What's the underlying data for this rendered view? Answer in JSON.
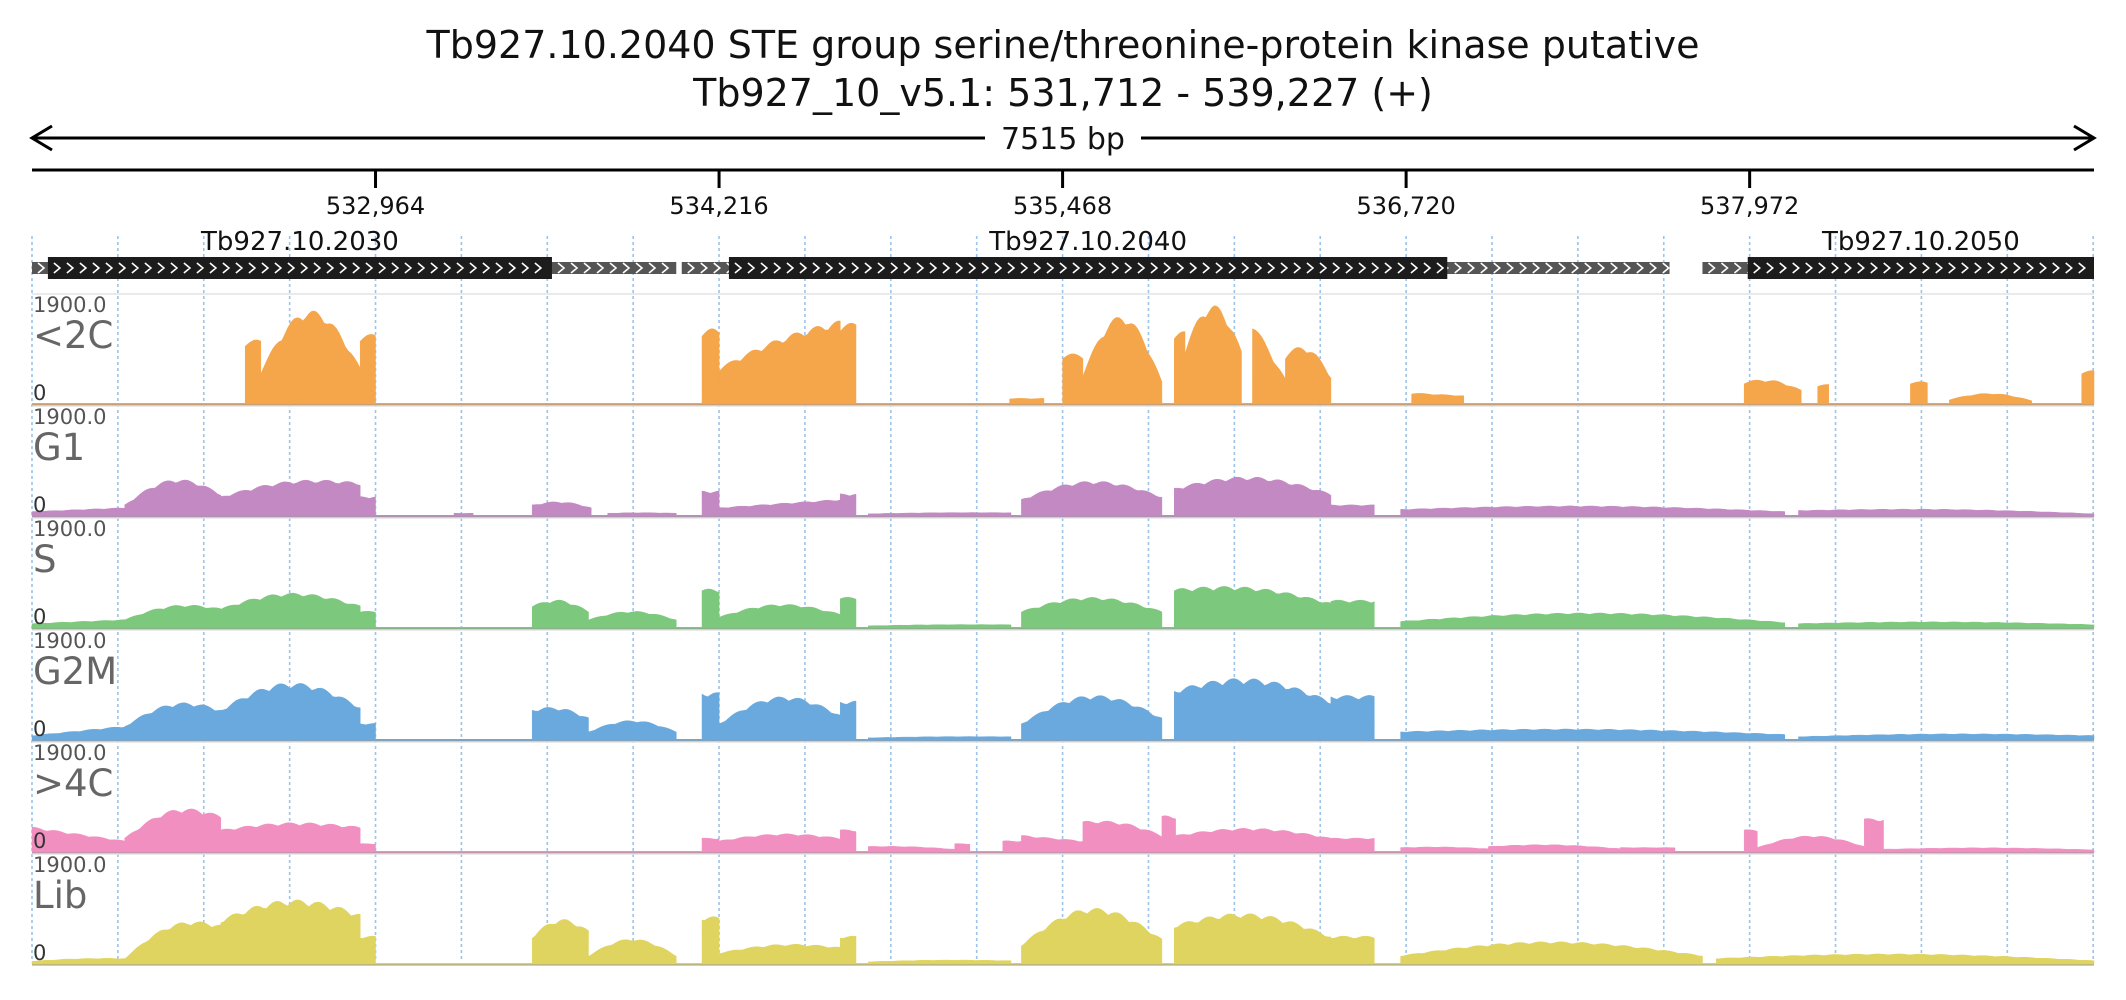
{
  "chart_data": {
    "type": "area",
    "title": "Tb927.10.2040  STE group serine/threonine-protein kinase  putative",
    "subtitle": "Tb927_10_v5.1: 531,712 - 539,227 (+)",
    "span_label": "7515 bp",
    "x_range": [
      531712,
      539227
    ],
    "x_ticks": [
      {
        "value": 532964,
        "label": "532,964"
      },
      {
        "value": 534216,
        "label": "534,216"
      },
      {
        "value": 535468,
        "label": "535,468"
      },
      {
        "value": 536720,
        "label": "536,720"
      },
      {
        "value": 537972,
        "label": "537,972"
      }
    ],
    "grid": true,
    "genes": [
      {
        "name": "Tb927.10.2030",
        "utr_start": 531712,
        "cds_start": 531770,
        "cds_end": 533607,
        "utr_end": 534060,
        "strand": "+"
      },
      {
        "name": "Tb927.10.2040",
        "utr_start": 534080,
        "cds_start": 534252,
        "cds_end": 536870,
        "utr_end": 537680,
        "strand": "+"
      },
      {
        "name": "Tb927.10.2050",
        "utr_start": 537800,
        "cds_start": 537965,
        "cds_end": 539227,
        "utr_end": 539227,
        "strand": "+"
      }
    ],
    "y_max_label": "1900.0",
    "y_min_label": "0",
    "ylim": [
      0,
      1900
    ],
    "series": [
      {
        "name": "<2C",
        "color": "#f5a54a",
        "segments": [
          {
            "start": 532489,
            "end": 532546,
            "v0": 1150,
            "v1": 1150,
            "peak": 1150
          },
          {
            "start": 532546,
            "end": 532908,
            "v0": 600,
            "v1": 650,
            "peak": 1700
          },
          {
            "start": 532908,
            "end": 532964,
            "v0": 1250,
            "v1": 1250,
            "peak": 1250
          },
          {
            "start": 534154,
            "end": 534216,
            "v0": 1350,
            "v1": 1350,
            "peak": 1350
          },
          {
            "start": 534216,
            "end": 534658,
            "v0": 650,
            "v1": 1500,
            "peak": 1600
          },
          {
            "start": 534658,
            "end": 534715,
            "v0": 1450,
            "v1": 1450,
            "peak": 1450
          },
          {
            "start": 535275,
            "end": 535400,
            "v0": 100,
            "v1": 100,
            "peak": 100
          },
          {
            "start": 535468,
            "end": 535542,
            "v0": 900,
            "v1": 900,
            "peak": 900
          },
          {
            "start": 535542,
            "end": 535830,
            "v0": 550,
            "v1": 400,
            "peak": 1650
          },
          {
            "start": 535875,
            "end": 535914,
            "v0": 1300,
            "v1": 1300,
            "peak": 1300
          },
          {
            "start": 535914,
            "end": 536120,
            "v0": 1000,
            "v1": 950,
            "peak": 1800
          },
          {
            "start": 536160,
            "end": 536280,
            "v0": 1500,
            "v1": 450,
            "peak": 1500
          },
          {
            "start": 536280,
            "end": 536446,
            "v0": 900,
            "v1": 500,
            "peak": 1200
          },
          {
            "start": 536740,
            "end": 536930,
            "v0": 200,
            "v1": 150,
            "peak": 200
          },
          {
            "start": 537952,
            "end": 538160,
            "v0": 400,
            "v1": 250,
            "peak": 500
          },
          {
            "start": 538220,
            "end": 538260,
            "v0": 350,
            "v1": 350,
            "peak": 350
          },
          {
            "start": 538558,
            "end": 538620,
            "v0": 400,
            "v1": 400,
            "peak": 400
          },
          {
            "start": 538700,
            "end": 539000,
            "v0": 80,
            "v1": 60,
            "peak": 200
          },
          {
            "start": 539182,
            "end": 539227,
            "v0": 600,
            "v1": 600,
            "peak": 600
          }
        ]
      },
      {
        "name": "G1",
        "color": "#c389c3",
        "segments": [
          {
            "start": 531712,
            "end": 532050,
            "v0": 80,
            "v1": 150,
            "peak": 150
          },
          {
            "start": 532050,
            "end": 532400,
            "v0": 200,
            "v1": 400,
            "peak": 750
          },
          {
            "start": 532400,
            "end": 532908,
            "v0": 350,
            "v1": 600,
            "peak": 750
          },
          {
            "start": 532908,
            "end": 532964,
            "v0": 350,
            "v1": 350,
            "peak": 350
          },
          {
            "start": 533250,
            "end": 533320,
            "v0": 50,
            "v1": 50,
            "peak": 50
          },
          {
            "start": 533535,
            "end": 533750,
            "v0": 200,
            "v1": 150,
            "peak": 280
          },
          {
            "start": 533810,
            "end": 534060,
            "v0": 50,
            "v1": 50,
            "peak": 60
          },
          {
            "start": 534154,
            "end": 534216,
            "v0": 450,
            "v1": 450,
            "peak": 450
          },
          {
            "start": 534216,
            "end": 534658,
            "v0": 150,
            "v1": 300,
            "peak": 300
          },
          {
            "start": 534658,
            "end": 534715,
            "v0": 400,
            "v1": 400,
            "peak": 400
          },
          {
            "start": 534760,
            "end": 535280,
            "v0": 40,
            "v1": 60,
            "peak": 70
          },
          {
            "start": 535318,
            "end": 535830,
            "v0": 300,
            "v1": 350,
            "peak": 650
          },
          {
            "start": 535875,
            "end": 536446,
            "v0": 500,
            "v1": 400,
            "peak": 750
          },
          {
            "start": 536446,
            "end": 536604,
            "v0": 200,
            "v1": 200,
            "peak": 200
          },
          {
            "start": 536700,
            "end": 538100,
            "v0": 120,
            "v1": 80,
            "peak": 200
          },
          {
            "start": 538150,
            "end": 539227,
            "v0": 100,
            "v1": 40,
            "peak": 150
          }
        ]
      },
      {
        "name": "S",
        "color": "#7cc87c",
        "segments": [
          {
            "start": 531712,
            "end": 532050,
            "v0": 80,
            "v1": 150,
            "peak": 150
          },
          {
            "start": 532050,
            "end": 532400,
            "v0": 150,
            "v1": 350,
            "peak": 500
          },
          {
            "start": 532400,
            "end": 532908,
            "v0": 350,
            "v1": 400,
            "peak": 650
          },
          {
            "start": 532908,
            "end": 532964,
            "v0": 300,
            "v1": 300,
            "peak": 300
          },
          {
            "start": 533535,
            "end": 533740,
            "v0": 400,
            "v1": 300,
            "peak": 550
          },
          {
            "start": 533740,
            "end": 534060,
            "v0": 150,
            "v1": 150,
            "peak": 300
          },
          {
            "start": 534154,
            "end": 534216,
            "v0": 700,
            "v1": 700,
            "peak": 700
          },
          {
            "start": 534216,
            "end": 534658,
            "v0": 200,
            "v1": 250,
            "peak": 450
          },
          {
            "start": 534658,
            "end": 534715,
            "v0": 550,
            "v1": 550,
            "peak": 550
          },
          {
            "start": 534760,
            "end": 535280,
            "v0": 40,
            "v1": 60,
            "peak": 70
          },
          {
            "start": 535318,
            "end": 535830,
            "v0": 300,
            "v1": 300,
            "peak": 550
          },
          {
            "start": 535875,
            "end": 536446,
            "v0": 700,
            "v1": 450,
            "peak": 850
          },
          {
            "start": 536446,
            "end": 536604,
            "v0": 500,
            "v1": 500,
            "peak": 500
          },
          {
            "start": 536700,
            "end": 538100,
            "v0": 120,
            "v1": 100,
            "peak": 280
          },
          {
            "start": 538150,
            "end": 539227,
            "v0": 80,
            "v1": 60,
            "peak": 120
          }
        ]
      },
      {
        "name": "G2M",
        "color": "#6aa9dd",
        "segments": [
          {
            "start": 531712,
            "end": 532050,
            "v0": 80,
            "v1": 250,
            "peak": 250
          },
          {
            "start": 532050,
            "end": 532400,
            "v0": 250,
            "v1": 550,
            "peak": 800
          },
          {
            "start": 532400,
            "end": 532908,
            "v0": 550,
            "v1": 600,
            "peak": 1050
          },
          {
            "start": 532908,
            "end": 532964,
            "v0": 300,
            "v1": 300,
            "peak": 300
          },
          {
            "start": 533535,
            "end": 533740,
            "v0": 550,
            "v1": 400,
            "peak": 650
          },
          {
            "start": 533740,
            "end": 534060,
            "v0": 150,
            "v1": 150,
            "peak": 350
          },
          {
            "start": 534154,
            "end": 534216,
            "v0": 850,
            "v1": 850,
            "peak": 850
          },
          {
            "start": 534216,
            "end": 534658,
            "v0": 300,
            "v1": 450,
            "peak": 850
          },
          {
            "start": 534658,
            "end": 534715,
            "v0": 700,
            "v1": 700,
            "peak": 700
          },
          {
            "start": 534760,
            "end": 535280,
            "v0": 40,
            "v1": 60,
            "peak": 70
          },
          {
            "start": 535318,
            "end": 535830,
            "v0": 300,
            "v1": 400,
            "peak": 850
          },
          {
            "start": 535875,
            "end": 536446,
            "v0": 900,
            "v1": 700,
            "peak": 1200
          },
          {
            "start": 536446,
            "end": 536604,
            "v0": 800,
            "v1": 800,
            "peak": 800
          },
          {
            "start": 536700,
            "end": 538100,
            "v0": 150,
            "v1": 100,
            "peak": 220
          },
          {
            "start": 538150,
            "end": 539227,
            "v0": 60,
            "v1": 80,
            "peak": 120
          }
        ]
      },
      {
        "name": ">4C",
        "color": "#f190c0",
        "segments": [
          {
            "start": 531712,
            "end": 532050,
            "v0": 450,
            "v1": 200,
            "peak": 450
          },
          {
            "start": 532050,
            "end": 532400,
            "v0": 250,
            "v1": 650,
            "peak": 950
          },
          {
            "start": 532400,
            "end": 532908,
            "v0": 400,
            "v1": 450,
            "peak": 550
          },
          {
            "start": 532908,
            "end": 532964,
            "v0": 150,
            "v1": 150,
            "peak": 150
          },
          {
            "start": 534154,
            "end": 534216,
            "v0": 250,
            "v1": 250,
            "peak": 250
          },
          {
            "start": 534216,
            "end": 534658,
            "v0": 200,
            "v1": 250,
            "peak": 350
          },
          {
            "start": 534658,
            "end": 534715,
            "v0": 400,
            "v1": 400,
            "peak": 400
          },
          {
            "start": 534760,
            "end": 535075,
            "v0": 100,
            "v1": 50,
            "peak": 120
          },
          {
            "start": 535075,
            "end": 535130,
            "v0": 150,
            "v1": 150,
            "peak": 150
          },
          {
            "start": 535250,
            "end": 535318,
            "v0": 200,
            "v1": 200,
            "peak": 200
          },
          {
            "start": 535318,
            "end": 535542,
            "v0": 300,
            "v1": 200,
            "peak": 300
          },
          {
            "start": 535542,
            "end": 535830,
            "v0": 550,
            "v1": 300,
            "peak": 650
          },
          {
            "start": 535830,
            "end": 535880,
            "v0": 650,
            "v1": 650,
            "peak": 650
          },
          {
            "start": 535880,
            "end": 536446,
            "v0": 300,
            "v1": 250,
            "peak": 450
          },
          {
            "start": 536446,
            "end": 536604,
            "v0": 250,
            "v1": 250,
            "peak": 250
          },
          {
            "start": 536700,
            "end": 537020,
            "v0": 80,
            "v1": 60,
            "peak": 100
          },
          {
            "start": 537020,
            "end": 537500,
            "v0": 100,
            "v1": 60,
            "peak": 150
          },
          {
            "start": 537500,
            "end": 537700,
            "v0": 80,
            "v1": 80,
            "peak": 80
          },
          {
            "start": 537952,
            "end": 538000,
            "v0": 400,
            "v1": 400,
            "peak": 400
          },
          {
            "start": 538000,
            "end": 538390,
            "v0": 80,
            "v1": 100,
            "peak": 300
          },
          {
            "start": 538390,
            "end": 538460,
            "v0": 600,
            "v1": 600,
            "peak": 600
          },
          {
            "start": 538460,
            "end": 539227,
            "v0": 50,
            "v1": 40,
            "peak": 80
          }
        ]
      },
      {
        "name": "Lib",
        "color": "#dfd45f",
        "segments": [
          {
            "start": 531712,
            "end": 532050,
            "v0": 50,
            "v1": 100,
            "peak": 120
          },
          {
            "start": 532050,
            "end": 532400,
            "v0": 100,
            "v1": 700,
            "peak": 1000
          },
          {
            "start": 532400,
            "end": 532908,
            "v0": 800,
            "v1": 900,
            "peak": 1200
          },
          {
            "start": 532908,
            "end": 532964,
            "v0": 500,
            "v1": 500,
            "peak": 500
          },
          {
            "start": 533535,
            "end": 533740,
            "v0": 500,
            "v1": 600,
            "peak": 850
          },
          {
            "start": 533740,
            "end": 534060,
            "v0": 150,
            "v1": 150,
            "peak": 450
          },
          {
            "start": 534154,
            "end": 534216,
            "v0": 850,
            "v1": 850,
            "peak": 850
          },
          {
            "start": 534216,
            "end": 534658,
            "v0": 200,
            "v1": 300,
            "peak": 400
          },
          {
            "start": 534658,
            "end": 534715,
            "v0": 500,
            "v1": 500,
            "peak": 500
          },
          {
            "start": 534760,
            "end": 535280,
            "v0": 40,
            "v1": 60,
            "peak": 80
          },
          {
            "start": 535318,
            "end": 535830,
            "v0": 350,
            "v1": 450,
            "peak": 1050
          },
          {
            "start": 535875,
            "end": 536446,
            "v0": 700,
            "v1": 500,
            "peak": 1000
          },
          {
            "start": 536446,
            "end": 536604,
            "v0": 500,
            "v1": 500,
            "peak": 500
          },
          {
            "start": 536700,
            "end": 537800,
            "v0": 150,
            "v1": 150,
            "peak": 400
          },
          {
            "start": 537850,
            "end": 539227,
            "v0": 100,
            "v1": 60,
            "peak": 200
          }
        ]
      }
    ]
  }
}
